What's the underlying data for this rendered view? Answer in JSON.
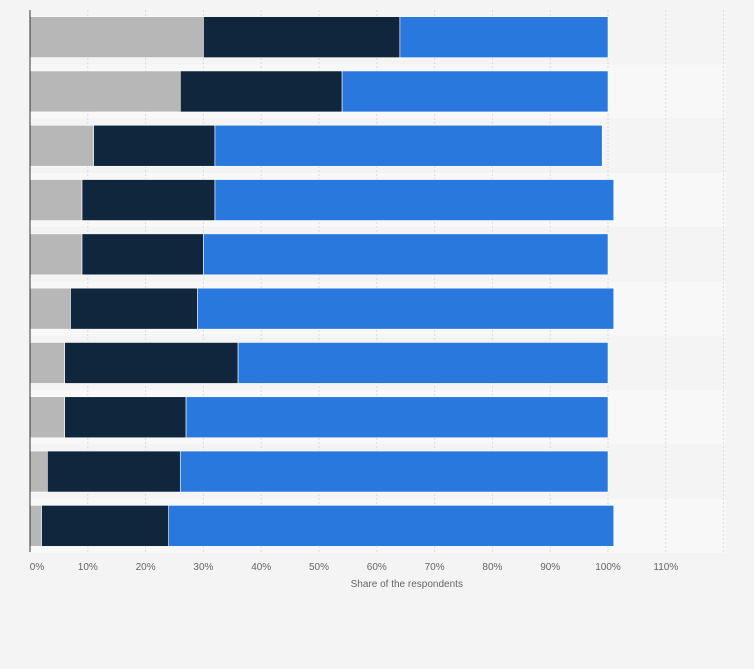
{
  "chart_data": {
    "type": "bar",
    "orientation": "horizontal",
    "stacked": true,
    "xlabel": "Share of the respondents",
    "xlim": [
      0,
      120
    ],
    "xticks": [
      0,
      10,
      20,
      30,
      40,
      50,
      60,
      70,
      80,
      90,
      100,
      110
    ],
    "xtick_labels": [
      "0%",
      "10%",
      "20%",
      "30%",
      "40%",
      "50%",
      "60%",
      "70%",
      "80%",
      "90%",
      "100%",
      "110%"
    ],
    "grid": true,
    "categories": [
      "",
      "",
      "",
      "",
      "",
      "",
      "",
      "",
      "",
      ""
    ],
    "series": [
      {
        "color": "#b7b7b7",
        "values": [
          30,
          26,
          11,
          9,
          9,
          7,
          6,
          6,
          3,
          2
        ]
      },
      {
        "color": "#10263d",
        "values": [
          34,
          28,
          21,
          23,
          21,
          22,
          30,
          21,
          23,
          22
        ]
      },
      {
        "color": "#2878de",
        "values": [
          36,
          46,
          67,
          69,
          70,
          72,
          64,
          73,
          74,
          77
        ]
      }
    ]
  }
}
